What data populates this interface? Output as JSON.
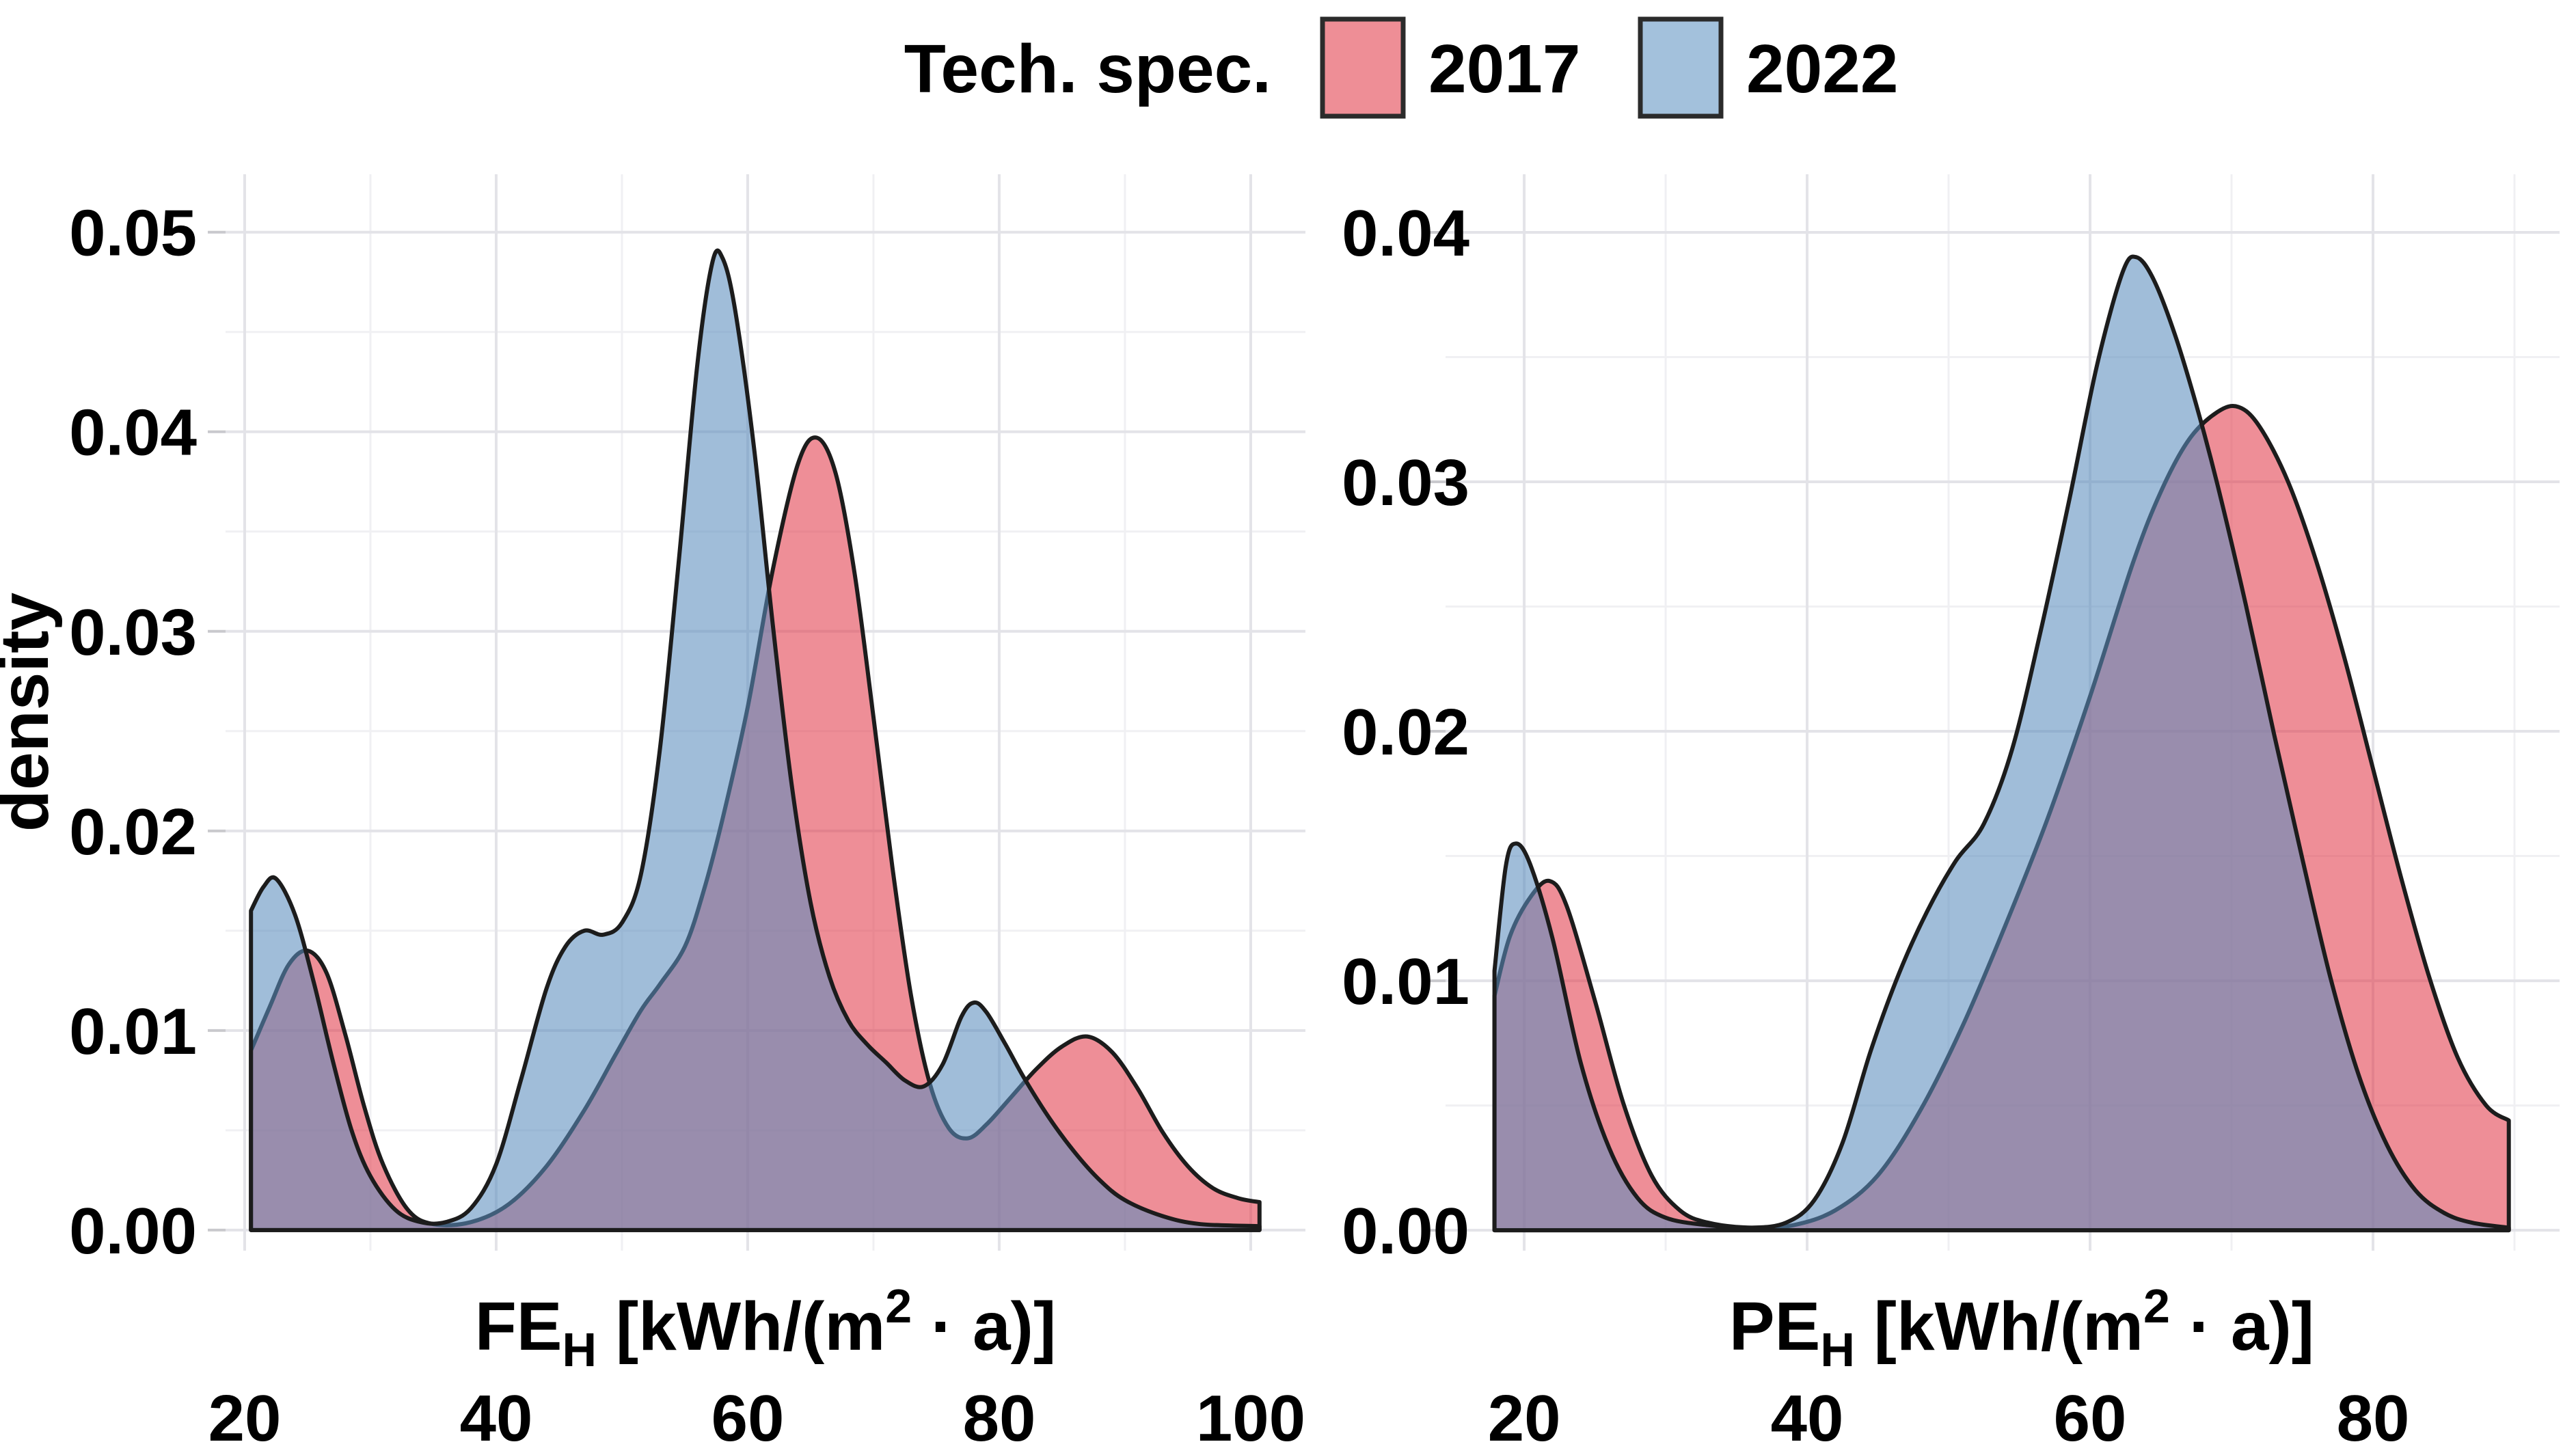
{
  "legend": {
    "title": "Tech. spec.",
    "position": "top-center",
    "items": [
      {
        "label": "2017",
        "swatch_color": "#EE8E96",
        "swatch_border": "#2b2b2b"
      },
      {
        "label": "2022",
        "swatch_color": "#A3C1DC",
        "swatch_border": "#2b2b2b"
      }
    ]
  },
  "colors": {
    "background": "#ffffff",
    "grid_major": "#e3e3e8",
    "grid_minor": "#f0f0f3",
    "outline": "#1c1c1c",
    "fill_2017": "rgba(226,61,75,0.58)",
    "fill_2022": "rgba(92,141,189,0.58)",
    "overlap_seen": "#8d7ba2",
    "text": "#000000"
  },
  "chart_data": [
    {
      "type": "area",
      "subtype": "kernel-density",
      "panel": "left",
      "xlabel": {
        "base": "FE",
        "sub": "H",
        "unit_pre": " [kWh/(m",
        "sup": "2",
        "unit_post": " · a)]"
      },
      "ylabel": "density",
      "xlim": [
        18.48,
        104.35
      ],
      "ylim": [
        -0.00103,
        0.0529
      ],
      "x_ticks": [
        20,
        40,
        60,
        80,
        100
      ],
      "x_tick_labels": [
        "20",
        "40",
        "60",
        "80",
        "100"
      ],
      "x_minor": [
        30,
        50,
        70,
        90
      ],
      "y_ticks": [
        0,
        0.01,
        0.02,
        0.03,
        0.04,
        0.05
      ],
      "y_tick_labels": [
        "0.00",
        "0.01",
        "0.02",
        "0.03",
        "0.04",
        "0.05"
      ],
      "y_minor": [
        0.005,
        0.015,
        0.025,
        0.035,
        0.045
      ],
      "grid": true,
      "series": [
        {
          "name": "2017",
          "fill": "rgba(226,61,75,0.58)",
          "points": [
            [
              20.5,
              0.009
            ],
            [
              22,
              0.0112
            ],
            [
              23.5,
              0.0133
            ],
            [
              25,
              0.014
            ],
            [
              26.5,
              0.0129
            ],
            [
              28,
              0.0098
            ],
            [
              29.5,
              0.0062
            ],
            [
              31,
              0.0033
            ],
            [
              33,
              0.001
            ],
            [
              35,
              0.0003
            ],
            [
              38,
              0.0004
            ],
            [
              41,
              0.0013
            ],
            [
              44,
              0.0032
            ],
            [
              47,
              0.006
            ],
            [
              49.5,
              0.0088
            ],
            [
              51.5,
              0.011
            ],
            [
              53,
              0.0123
            ],
            [
              55,
              0.0142
            ],
            [
              56.5,
              0.017
            ],
            [
              58,
              0.0206
            ],
            [
              60,
              0.0262
            ],
            [
              62,
              0.0331
            ],
            [
              64,
              0.0384
            ],
            [
              65.5,
              0.0397
            ],
            [
              67,
              0.0379
            ],
            [
              68.5,
              0.0329
            ],
            [
              70,
              0.0257
            ],
            [
              71.5,
              0.0182
            ],
            [
              73,
              0.0117
            ],
            [
              74.5,
              0.0073
            ],
            [
              76,
              0.0051
            ],
            [
              77.5,
              0.0046
            ],
            [
              79,
              0.0053
            ],
            [
              81,
              0.0067
            ],
            [
              83,
              0.0081
            ],
            [
              85,
              0.0092
            ],
            [
              87,
              0.0097
            ],
            [
              89,
              0.0089
            ],
            [
              91,
              0.0071
            ],
            [
              93,
              0.0049
            ],
            [
              95,
              0.0032
            ],
            [
              97,
              0.0021
            ],
            [
              99,
              0.0016
            ],
            [
              100.7,
              0.0014
            ]
          ]
        },
        {
          "name": "2022",
          "fill": "rgba(92,141,189,0.58)",
          "points": [
            [
              20.5,
              0.016
            ],
            [
              21.5,
              0.0172
            ],
            [
              22.5,
              0.0176
            ],
            [
              24,
              0.0158
            ],
            [
              25.5,
              0.0124
            ],
            [
              27,
              0.0085
            ],
            [
              28.5,
              0.005
            ],
            [
              30,
              0.0027
            ],
            [
              32,
              0.001
            ],
            [
              34,
              0.0004
            ],
            [
              36,
              0.0004
            ],
            [
              38,
              0.0011
            ],
            [
              40,
              0.0033
            ],
            [
              42,
              0.0076
            ],
            [
              44,
              0.0121
            ],
            [
              45.5,
              0.0142
            ],
            [
              47,
              0.015
            ],
            [
              48.5,
              0.0148
            ],
            [
              50,
              0.0154
            ],
            [
              51.5,
              0.0178
            ],
            [
              53,
              0.024
            ],
            [
              54.5,
              0.0334
            ],
            [
              56,
              0.0434
            ],
            [
              57.2,
              0.0485
            ],
            [
              58,
              0.0487
            ],
            [
              59,
              0.0461
            ],
            [
              60.5,
              0.0392
            ],
            [
              62,
              0.0303
            ],
            [
              63.5,
              0.0223
            ],
            [
              65,
              0.0164
            ],
            [
              66.5,
              0.0127
            ],
            [
              68,
              0.0105
            ],
            [
              69.5,
              0.0093
            ],
            [
              71,
              0.0084
            ],
            [
              72.5,
              0.0075
            ],
            [
              74,
              0.0072
            ],
            [
              75.5,
              0.0083
            ],
            [
              77,
              0.0107
            ],
            [
              78,
              0.0114
            ],
            [
              79,
              0.0109
            ],
            [
              80.5,
              0.0093
            ],
            [
              82,
              0.0076
            ],
            [
              84,
              0.0056
            ],
            [
              86,
              0.0039
            ],
            [
              88,
              0.0025
            ],
            [
              90,
              0.0015
            ],
            [
              93,
              0.0007
            ],
            [
              96,
              0.0003
            ],
            [
              100.7,
              0.0002
            ]
          ]
        }
      ]
    },
    {
      "type": "area",
      "subtype": "kernel-density",
      "panel": "right",
      "xlabel": {
        "base": "PE",
        "sub": "H",
        "unit_pre": " [kWh/(m",
        "sup": "2",
        "unit_post": " · a)]"
      },
      "ylabel": "",
      "xlim": [
        14.44,
        93.19
      ],
      "ylim": [
        -0.00082,
        0.04233
      ],
      "x_ticks": [
        20,
        40,
        60,
        80
      ],
      "x_tick_labels": [
        "20",
        "40",
        "60",
        "80"
      ],
      "x_minor": [
        30,
        50,
        70,
        90
      ],
      "y_ticks": [
        0,
        0.01,
        0.02,
        0.03,
        0.04
      ],
      "y_tick_labels": [
        "0.00",
        "0.01",
        "0.02",
        "0.03",
        "0.04"
      ],
      "y_minor": [
        0.005,
        0.015,
        0.025,
        0.035
      ],
      "grid": true,
      "series": [
        {
          "name": "2017",
          "fill": "rgba(226,61,75,0.58)",
          "points": [
            [
              17.9,
              0.0094
            ],
            [
              19,
              0.0118
            ],
            [
              20.5,
              0.0134
            ],
            [
              21.8,
              0.014
            ],
            [
              23,
              0.013
            ],
            [
              25,
              0.0092
            ],
            [
              27,
              0.0051
            ],
            [
              29,
              0.0022
            ],
            [
              31,
              0.0008
            ],
            [
              33,
              0.0003
            ],
            [
              36,
              0.0001
            ],
            [
              39,
              0.0002
            ],
            [
              42,
              0.0008
            ],
            [
              45,
              0.0022
            ],
            [
              48,
              0.0048
            ],
            [
              51,
              0.0082
            ],
            [
              54,
              0.0122
            ],
            [
              57,
              0.0165
            ],
            [
              60,
              0.0214
            ],
            [
              63,
              0.0267
            ],
            [
              65,
              0.0296
            ],
            [
              67,
              0.0317
            ],
            [
              69,
              0.0328
            ],
            [
              70.5,
              0.033
            ],
            [
              72,
              0.0322
            ],
            [
              74,
              0.03
            ],
            [
              76,
              0.0268
            ],
            [
              78,
              0.0229
            ],
            [
              80,
              0.0185
            ],
            [
              82,
              0.0141
            ],
            [
              84,
              0.0101
            ],
            [
              86,
              0.0069
            ],
            [
              88,
              0.005
            ],
            [
              89.6,
              0.0044
            ]
          ]
        },
        {
          "name": "2022",
          "fill": "rgba(92,141,189,0.58)",
          "points": [
            [
              17.9,
              0.0104
            ],
            [
              18.7,
              0.0146
            ],
            [
              19.4,
              0.0155
            ],
            [
              20.4,
              0.0147
            ],
            [
              22,
              0.0117
            ],
            [
              24,
              0.0067
            ],
            [
              26,
              0.0033
            ],
            [
              28,
              0.0013
            ],
            [
              30,
              0.0005
            ],
            [
              33,
              0.0002
            ],
            [
              36,
              0.0001
            ],
            [
              38.5,
              0.0003
            ],
            [
              40.5,
              0.0012
            ],
            [
              42.5,
              0.0035
            ],
            [
              44.5,
              0.0072
            ],
            [
              46.5,
              0.0103
            ],
            [
              48.5,
              0.0128
            ],
            [
              50.5,
              0.0148
            ],
            [
              52.5,
              0.0163
            ],
            [
              54.5,
              0.0193
            ],
            [
              56.5,
              0.024
            ],
            [
              58.5,
              0.0292
            ],
            [
              60.5,
              0.0347
            ],
            [
              62.3,
              0.0384
            ],
            [
              63.3,
              0.039
            ],
            [
              64.5,
              0.0381
            ],
            [
              66,
              0.0359
            ],
            [
              67.5,
              0.0331
            ],
            [
              69,
              0.0299
            ],
            [
              71,
              0.0251
            ],
            [
              73,
              0.0199
            ],
            [
              75,
              0.0149
            ],
            [
              77,
              0.0101
            ],
            [
              79,
              0.0062
            ],
            [
              81,
              0.0034
            ],
            [
              83,
              0.0016
            ],
            [
              85,
              0.0007
            ],
            [
              87,
              0.0003
            ],
            [
              89.6,
              0.0001
            ]
          ]
        }
      ]
    }
  ]
}
